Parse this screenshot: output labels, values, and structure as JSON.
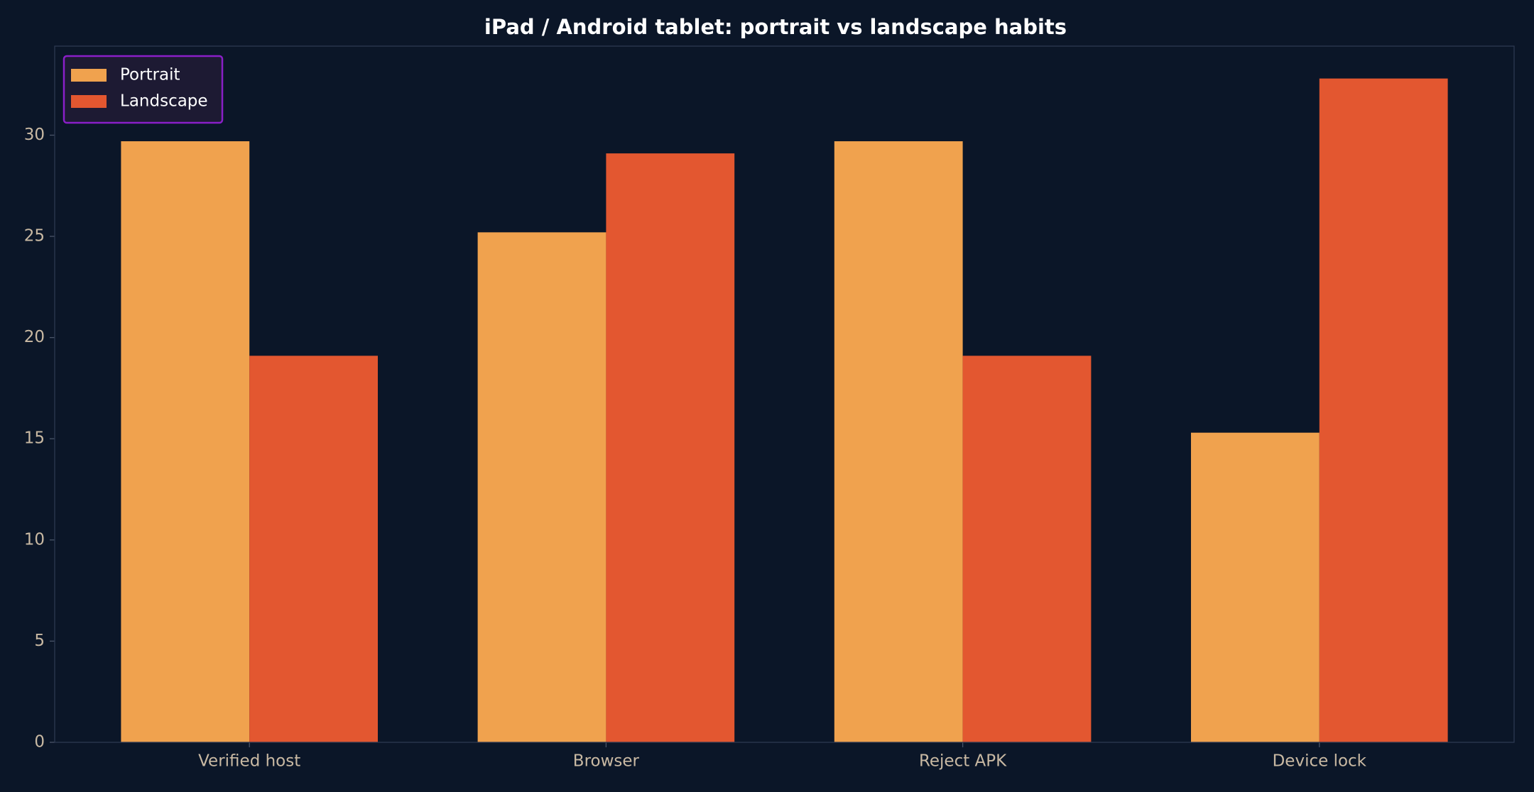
{
  "chart_data": {
    "type": "bar",
    "title": "iPad / Android tablet: portrait vs landscape habits",
    "categories": [
      "Verified host",
      "Browser",
      "Reject APK",
      "Device lock"
    ],
    "series": [
      {
        "name": "Portrait",
        "color": "#f0a24e",
        "values": [
          29.7,
          25.2,
          29.7,
          15.3
        ]
      },
      {
        "name": "Landscape",
        "color": "#e35730",
        "values": [
          19.1,
          29.1,
          19.1,
          32.8
        ]
      }
    ],
    "ylim": [
      0,
      34.4
    ],
    "yticks": [
      0,
      5,
      10,
      15,
      20,
      25,
      30
    ],
    "legend": "upper left"
  }
}
